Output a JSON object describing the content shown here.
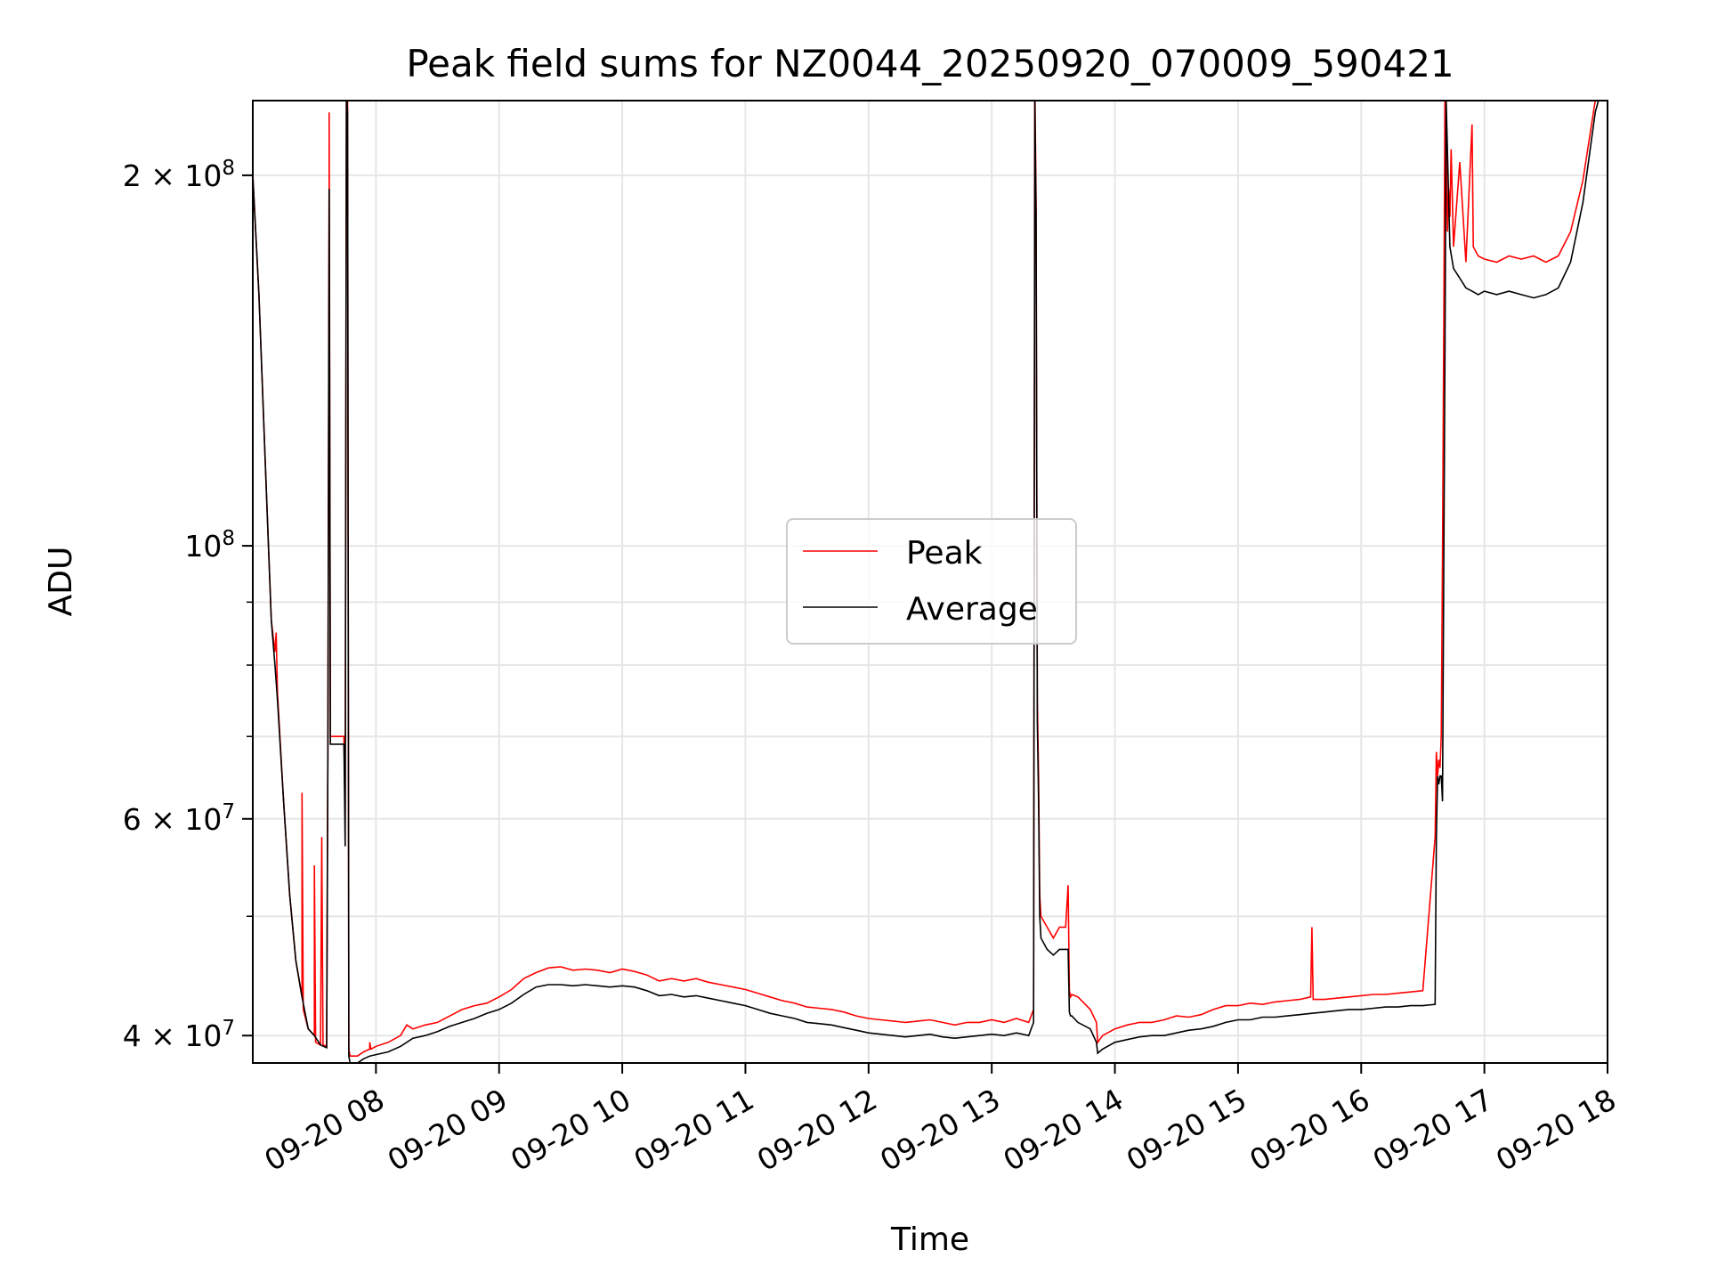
{
  "chart_data": {
    "type": "line",
    "title": "Peak field sums for NZ0044_20250920_070009_590421",
    "xlabel": "Time",
    "ylabel": "ADU",
    "yscale": "log",
    "xlim_hours": [
      7.0,
      18.0
    ],
    "ylim": [
      38000000,
      230000000
    ],
    "grid": true,
    "legend": {
      "location": "center",
      "entries": [
        "Peak",
        "Average"
      ]
    },
    "x_ticks": [
      {
        "value": 8,
        "label": "09-20 08"
      },
      {
        "value": 9,
        "label": "09-20 09"
      },
      {
        "value": 10,
        "label": "09-20 10"
      },
      {
        "value": 11,
        "label": "09-20 11"
      },
      {
        "value": 12,
        "label": "09-20 12"
      },
      {
        "value": 13,
        "label": "09-20 13"
      },
      {
        "value": 14,
        "label": "09-20 14"
      },
      {
        "value": 15,
        "label": "09-20 15"
      },
      {
        "value": 16,
        "label": "09-20 16"
      },
      {
        "value": 17,
        "label": "09-20 17"
      },
      {
        "value": 18,
        "label": "09-20 18"
      }
    ],
    "y_ticks": [
      {
        "value": 40000000,
        "base": "4 × 10",
        "exp": "7"
      },
      {
        "value": 60000000,
        "base": "6 × 10",
        "exp": "7"
      },
      {
        "value": 100000000,
        "base": "10",
        "exp": "8"
      },
      {
        "value": 200000000,
        "base": "2 × 10",
        "exp": "8"
      }
    ],
    "y_minor_ticks": [
      50000000,
      70000000,
      80000000,
      90000000
    ],
    "series": [
      {
        "name": "Peak",
        "color": "#ff0000",
        "x": [
          7.0,
          7.05,
          7.1,
          7.15,
          7.18,
          7.19,
          7.2,
          7.25,
          7.3,
          7.35,
          7.4,
          7.4,
          7.41,
          7.45,
          7.5,
          7.5,
          7.51,
          7.55,
          7.56,
          7.57,
          7.6,
          7.61,
          7.62,
          7.62,
          7.63,
          7.64,
          7.65,
          7.7,
          7.74,
          7.75,
          7.76,
          7.77,
          7.78,
          7.79,
          7.8,
          7.85,
          7.9,
          7.95,
          7.95,
          7.96,
          8.0,
          8.1,
          8.2,
          8.25,
          8.3,
          8.4,
          8.5,
          8.6,
          8.7,
          8.8,
          8.9,
          9.0,
          9.1,
          9.2,
          9.3,
          9.4,
          9.5,
          9.6,
          9.7,
          9.8,
          9.9,
          10.0,
          10.1,
          10.2,
          10.3,
          10.4,
          10.5,
          10.6,
          10.7,
          10.8,
          10.9,
          11.0,
          11.1,
          11.2,
          11.3,
          11.4,
          11.5,
          11.6,
          11.7,
          11.8,
          11.9,
          12.0,
          12.1,
          12.2,
          12.3,
          12.4,
          12.5,
          12.6,
          12.7,
          12.8,
          12.9,
          13.0,
          13.1,
          13.2,
          13.3,
          13.34,
          13.35,
          13.36,
          13.37,
          13.38,
          13.39,
          13.4,
          13.45,
          13.5,
          13.55,
          13.6,
          13.62,
          13.63,
          13.64,
          13.65,
          13.7,
          13.8,
          13.85,
          13.86,
          13.9,
          14.0,
          14.1,
          14.2,
          14.3,
          14.4,
          14.5,
          14.6,
          14.7,
          14.8,
          14.9,
          15.0,
          15.1,
          15.2,
          15.3,
          15.4,
          15.5,
          15.59,
          15.6,
          15.61,
          15.7,
          15.8,
          15.9,
          16.0,
          16.1,
          16.2,
          16.3,
          16.4,
          16.5,
          16.6,
          16.61,
          16.62,
          16.63,
          16.64,
          16.65,
          16.66,
          16.67,
          16.68,
          16.69,
          16.7,
          16.71,
          16.72,
          16.73,
          16.75,
          16.8,
          16.85,
          16.9,
          16.91,
          16.95,
          17.0,
          17.1,
          17.2,
          17.3,
          17.4,
          17.5,
          17.6,
          17.7,
          17.8,
          17.9,
          18.0
        ],
        "y": [
          200000000,
          160000000,
          118000000,
          87000000,
          82000000,
          85000000,
          76000000,
          62000000,
          52000000,
          46000000,
          43000000,
          63000000,
          42000000,
          40500000,
          40000000,
          55000000,
          39500000,
          39300000,
          58000000,
          39300000,
          39200000,
          70000000,
          200000000,
          225000000,
          70000000,
          70000000,
          70000000,
          70000000,
          70000000,
          60000000,
          240000000,
          230000000,
          39000000,
          38500000,
          38500000,
          38500000,
          38800000,
          39000000,
          39500000,
          39000000,
          39200000,
          39500000,
          40000000,
          40800000,
          40500000,
          40800000,
          41000000,
          41500000,
          42000000,
          42300000,
          42500000,
          43000000,
          43600000,
          44500000,
          45000000,
          45400000,
          45500000,
          45200000,
          45300000,
          45200000,
          45000000,
          45300000,
          45100000,
          44800000,
          44300000,
          44500000,
          44300000,
          44500000,
          44200000,
          44000000,
          43800000,
          43600000,
          43300000,
          43000000,
          42700000,
          42500000,
          42200000,
          42100000,
          42000000,
          41800000,
          41500000,
          41300000,
          41200000,
          41100000,
          41000000,
          41100000,
          41200000,
          41000000,
          40800000,
          41000000,
          41000000,
          41200000,
          41000000,
          41300000,
          41000000,
          42000000,
          240000000,
          190000000,
          75000000,
          65000000,
          52000000,
          50000000,
          49000000,
          48000000,
          49000000,
          49000000,
          53000000,
          43500000,
          43000000,
          43200000,
          43000000,
          42000000,
          41000000,
          39500000,
          40000000,
          40500000,
          40800000,
          41000000,
          41000000,
          41200000,
          41500000,
          41400000,
          41600000,
          42000000,
          42300000,
          42300000,
          42500000,
          42400000,
          42600000,
          42700000,
          42800000,
          43000000,
          49000000,
          42800000,
          42800000,
          42900000,
          43000000,
          43100000,
          43200000,
          43200000,
          43300000,
          43400000,
          43500000,
          58000000,
          68000000,
          65000000,
          67000000,
          66000000,
          70000000,
          98000000,
          150000000,
          235000000,
          215000000,
          180000000,
          195000000,
          185000000,
          210000000,
          175000000,
          205000000,
          170000000,
          220000000,
          175000000,
          172000000,
          171000000,
          170000000,
          172000000,
          171000000,
          172000000,
          170000000,
          172000000,
          180000000,
          198000000,
          230000000,
          245000000
        ]
      },
      {
        "name": "Average",
        "color": "#000000",
        "x": [
          7.0,
          7.05,
          7.1,
          7.15,
          7.18,
          7.2,
          7.25,
          7.3,
          7.35,
          7.4,
          7.45,
          7.5,
          7.55,
          7.6,
          7.61,
          7.62,
          7.63,
          7.64,
          7.65,
          7.7,
          7.74,
          7.75,
          7.76,
          7.77,
          7.78,
          7.79,
          7.8,
          7.85,
          7.9,
          7.95,
          8.0,
          8.1,
          8.2,
          8.3,
          8.4,
          8.5,
          8.6,
          8.7,
          8.8,
          8.9,
          9.0,
          9.1,
          9.2,
          9.3,
          9.4,
          9.5,
          9.6,
          9.7,
          9.8,
          9.9,
          10.0,
          10.1,
          10.2,
          10.3,
          10.4,
          10.5,
          10.6,
          10.7,
          10.8,
          10.9,
          11.0,
          11.1,
          11.2,
          11.3,
          11.4,
          11.5,
          11.6,
          11.7,
          11.8,
          11.9,
          12.0,
          12.1,
          12.2,
          12.3,
          12.4,
          12.5,
          12.6,
          12.7,
          12.8,
          12.9,
          13.0,
          13.1,
          13.2,
          13.3,
          13.34,
          13.35,
          13.36,
          13.37,
          13.38,
          13.39,
          13.4,
          13.45,
          13.5,
          13.55,
          13.6,
          13.62,
          13.63,
          13.64,
          13.65,
          13.7,
          13.8,
          13.85,
          13.86,
          13.9,
          14.0,
          14.1,
          14.2,
          14.3,
          14.4,
          14.5,
          14.6,
          14.7,
          14.8,
          14.9,
          15.0,
          15.1,
          15.2,
          15.3,
          15.4,
          15.5,
          15.6,
          15.7,
          15.8,
          15.9,
          16.0,
          16.1,
          16.2,
          16.3,
          16.4,
          16.5,
          16.6,
          16.61,
          16.62,
          16.63,
          16.64,
          16.65,
          16.66,
          16.67,
          16.68,
          16.69,
          16.7,
          16.72,
          16.75,
          16.8,
          16.85,
          16.9,
          16.95,
          17.0,
          17.1,
          17.2,
          17.3,
          17.4,
          17.5,
          17.6,
          17.7,
          17.8,
          17.9,
          18.0
        ],
        "y": [
          200000000,
          160000000,
          118000000,
          87000000,
          80000000,
          75000000,
          62000000,
          52000000,
          46000000,
          43000000,
          40500000,
          40000000,
          39300000,
          39100000,
          69000000,
          195000000,
          69000000,
          69000000,
          69000000,
          69000000,
          69000000,
          57000000,
          235000000,
          225000000,
          38500000,
          38000000,
          38000000,
          38000000,
          38300000,
          38500000,
          38600000,
          38800000,
          39200000,
          39800000,
          40000000,
          40300000,
          40700000,
          41000000,
          41300000,
          41700000,
          42000000,
          42500000,
          43200000,
          43800000,
          44000000,
          44000000,
          43900000,
          44000000,
          43900000,
          43800000,
          43900000,
          43800000,
          43500000,
          43100000,
          43200000,
          43000000,
          43100000,
          42900000,
          42700000,
          42500000,
          42300000,
          42000000,
          41700000,
          41500000,
          41300000,
          41000000,
          40900000,
          40800000,
          40600000,
          40400000,
          40200000,
          40100000,
          40000000,
          39900000,
          40000000,
          40100000,
          39900000,
          39800000,
          39900000,
          40000000,
          40100000,
          40000000,
          40200000,
          40000000,
          41000000,
          230000000,
          185000000,
          72000000,
          62000000,
          50000000,
          48000000,
          47000000,
          46500000,
          47000000,
          47000000,
          47000000,
          41800000,
          41500000,
          41500000,
          41000000,
          40500000,
          39500000,
          38700000,
          39000000,
          39500000,
          39700000,
          39900000,
          40000000,
          40000000,
          40200000,
          40400000,
          40500000,
          40700000,
          41000000,
          41200000,
          41200000,
          41400000,
          41400000,
          41500000,
          41600000,
          41700000,
          41800000,
          41900000,
          42000000,
          42000000,
          42100000,
          42200000,
          42200000,
          42300000,
          42300000,
          42400000,
          58000000,
          65000000,
          64000000,
          65000000,
          65000000,
          62000000,
          95000000,
          145000000,
          230000000,
          210000000,
          175000000,
          168000000,
          165000000,
          162000000,
          161000000,
          160000000,
          161000000,
          160000000,
          161000000,
          160000000,
          159000000,
          160000000,
          162000000,
          170000000,
          190000000,
          225000000,
          245000000
        ]
      }
    ]
  }
}
